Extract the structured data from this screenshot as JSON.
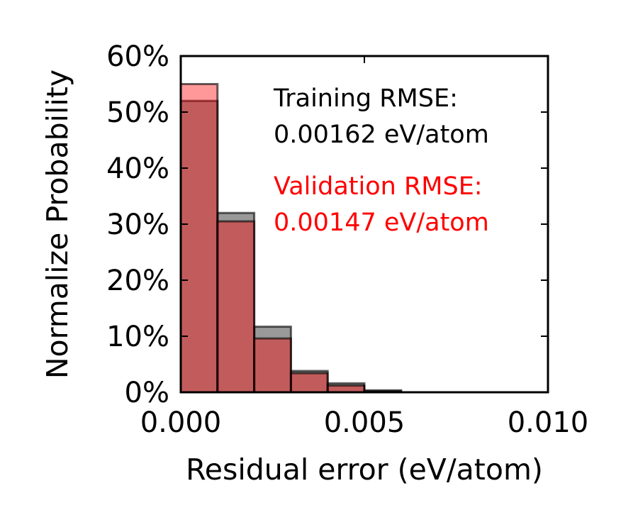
{
  "chart_data": {
    "type": "bar",
    "title": "",
    "xlabel": "Residual error (eV/atom)",
    "ylabel": "Normalize Probability",
    "xlim": [
      0.0,
      0.01
    ],
    "ylim": [
      0,
      60
    ],
    "x_ticks": [
      0.0,
      0.005,
      0.01
    ],
    "x_tick_labels": [
      "0.000",
      "0.005",
      "0.010"
    ],
    "y_ticks": [
      0,
      10,
      20,
      30,
      40,
      50,
      60
    ],
    "y_tick_labels": [
      "0%",
      "10%",
      "20%",
      "30%",
      "40%",
      "50%",
      "60%"
    ],
    "bin_width": 0.001,
    "bin_edges": [
      0.0,
      0.001,
      0.002,
      0.003,
      0.004,
      0.005,
      0.006
    ],
    "series": [
      {
        "name": "Training",
        "color": "#000000",
        "opacity": 0.4,
        "values": [
          52.0,
          32.0,
          11.7,
          3.8,
          1.6,
          0.35
        ]
      },
      {
        "name": "Validation",
        "color": "#ff0000",
        "opacity": 0.4,
        "values": [
          55.0,
          30.5,
          9.6,
          3.4,
          1.2,
          0.2
        ]
      }
    ],
    "annotations": {
      "training_label": "Training RMSE:",
      "training_value": "0.00162 eV/atom",
      "training_color": "#000000",
      "validation_label": "Validation RMSE:",
      "validation_value": "0.00147 eV/atom",
      "validation_color": "#ff0000"
    }
  }
}
